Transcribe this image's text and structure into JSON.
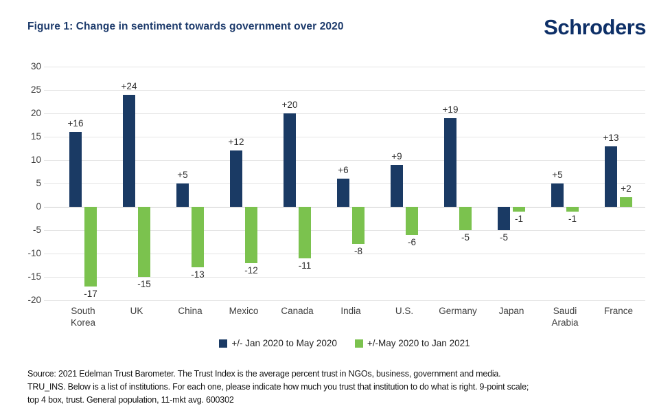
{
  "header": {
    "title": "Figure 1: Change in sentiment towards government over 2020",
    "logo_text": "Schroders"
  },
  "colors": {
    "navy": "#1a3a64",
    "green": "#7bc24e",
    "title_navy": "#1c3a6b",
    "gridline": "#e4e4e4",
    "zero_line": "#c9c9c9"
  },
  "chart_data": {
    "type": "bar",
    "title": "Figure 1: Change in sentiment towards government over 2020",
    "categories": [
      "South Korea",
      "UK",
      "China",
      "Mexico",
      "Canada",
      "India",
      "U.S.",
      "Germany",
      "Japan",
      "Saudi Arabia",
      "France"
    ],
    "series": [
      {
        "name": "+/- Jan 2020 to May 2020",
        "color": "#1a3a64",
        "values": [
          16,
          24,
          5,
          12,
          20,
          6,
          9,
          19,
          -5,
          5,
          13
        ],
        "display_labels": [
          "+16",
          "+24",
          "+5",
          "+12",
          "+20",
          "+6",
          "+9",
          "+19",
          "-5",
          "+5",
          "+13"
        ]
      },
      {
        "name": "+/-May 2020 to Jan 2021",
        "color": "#7bc24e",
        "values": [
          -17,
          -15,
          -13,
          -12,
          -11,
          -8,
          -6,
          -5,
          -1,
          -1,
          2
        ],
        "display_labels": [
          "-17",
          "-15",
          "-13",
          "-12",
          "-11",
          "-8",
          "-6",
          "-5",
          "-1",
          "-1",
          "+2"
        ]
      }
    ],
    "xlabel": "",
    "ylabel": "",
    "ylim": [
      -20,
      30
    ],
    "yticks": [
      30,
      25,
      20,
      15,
      10,
      5,
      0,
      -5,
      -10,
      -15,
      -20
    ],
    "ytick_labels": [
      "30",
      "25",
      "20",
      "15",
      "10",
      "5",
      "0",
      "-5",
      "-10",
      "-15",
      "-20"
    ],
    "grid": true,
    "legend_position": "bottom-center"
  },
  "legend": {
    "items": [
      {
        "label": "+/- Jan 2020 to May 2020",
        "color": "#1a3a64"
      },
      {
        "label": "+/-May 2020 to Jan 2021",
        "color": "#7bc24e"
      }
    ]
  },
  "footer": {
    "source_lines": [
      "Source: 2021 Edelman Trust Barometer. The Trust Index is the average percent trust in NGOs, business, government and media.",
      "TRU_INS. Below is a list of institutions. For each one, please indicate how much you trust that institution to do what is right. 9-point scale;",
      "top 4 box, trust. General population, 11-mkt avg. 600302"
    ]
  }
}
